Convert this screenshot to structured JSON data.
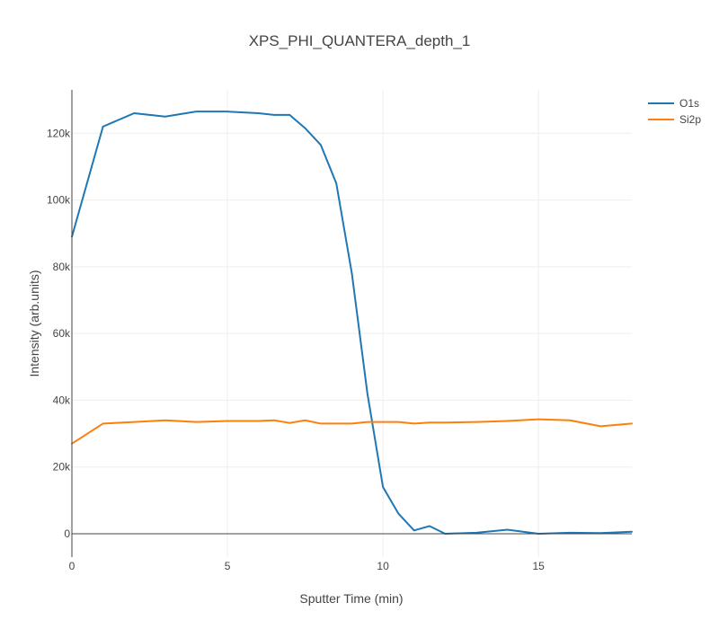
{
  "chart_data": {
    "type": "line",
    "title": "XPS_PHI_QUANTERA_depth_1",
    "xlabel": "Sputter Time (min)",
    "ylabel": "Intensity (arb.units)",
    "xlim": [
      0,
      18
    ],
    "ylim": [
      -7000,
      133000
    ],
    "x_ticks": [
      0,
      5,
      10,
      15
    ],
    "x_tick_labels": [
      "0",
      "5",
      "10",
      "15"
    ],
    "y_ticks": [
      0,
      20000,
      40000,
      60000,
      80000,
      100000,
      120000
    ],
    "y_tick_labels": [
      "0",
      "20k",
      "40k",
      "60k",
      "80k",
      "100k",
      "120k"
    ],
    "grid": true,
    "legend_position": "top-right",
    "series": [
      {
        "name": "O1s",
        "color": "#1f77b4",
        "x": [
          0,
          1,
          2,
          3,
          4,
          5,
          6,
          6.5,
          7,
          7.5,
          8,
          8.5,
          9,
          9.5,
          10,
          10.5,
          11,
          11.5,
          12,
          13,
          14,
          15,
          16,
          17,
          18
        ],
        "y": [
          89000,
          122000,
          126000,
          125000,
          126500,
          126500,
          126000,
          125500,
          125500,
          121500,
          116500,
          105000,
          78000,
          42000,
          14000,
          6000,
          1000,
          2300,
          0,
          300,
          1200,
          0,
          300,
          200,
          600
        ]
      },
      {
        "name": "Si2p",
        "color": "#ff7f0e",
        "x": [
          0,
          1,
          2,
          3,
          4,
          5,
          6,
          6.5,
          7,
          7.5,
          8,
          9,
          9.5,
          10,
          10.5,
          11,
          11.5,
          12,
          13,
          14,
          15,
          16,
          17,
          18
        ],
        "y": [
          27000,
          33000,
          33500,
          34000,
          33500,
          33800,
          33800,
          34000,
          33200,
          34000,
          33000,
          33000,
          33500,
          33500,
          33500,
          33000,
          33300,
          33300,
          33500,
          33800,
          34300,
          34000,
          32200,
          33000
        ]
      }
    ]
  }
}
